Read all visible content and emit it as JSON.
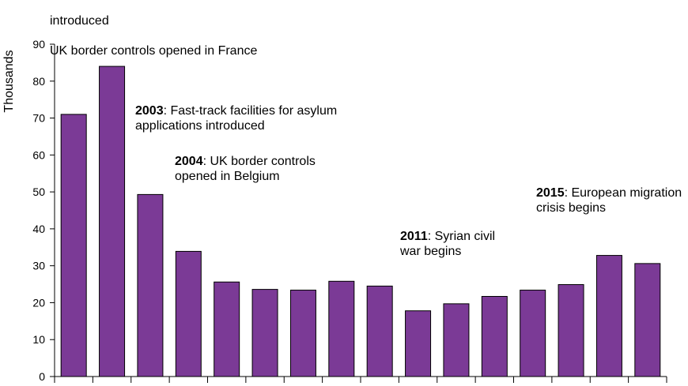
{
  "chart_data": {
    "type": "bar",
    "ylabel": "Thousands",
    "ylim": [
      0,
      90
    ],
    "yticks": [
      0,
      10,
      20,
      30,
      40,
      50,
      60,
      70,
      80,
      90
    ],
    "grid": false,
    "bar_color": "#7b3a96",
    "categories": [
      "",
      "",
      "",
      "",
      "",
      "",
      "",
      "",
      "",
      "",
      "",
      "",
      "",
      "",
      "",
      ""
    ],
    "values": [
      71,
      84,
      49.3,
      33.9,
      25.6,
      23.6,
      23.4,
      25.8,
      24.5,
      17.8,
      19.7,
      21.7,
      23.4,
      24.9,
      32.8,
      30.6
    ]
  },
  "annotations": {
    "top": {
      "lines": [
        "introduced",
        "UK border controls opened in France"
      ]
    },
    "a2003": {
      "year": "2003",
      "text": ": Fast-track facilities for asylum\napplications introduced"
    },
    "a2004": {
      "year": "2004",
      "text": ": UK border controls\nopened in Belgium"
    },
    "a2011": {
      "year": "2011",
      "text": ": Syrian civil\nwar begins"
    },
    "a2015": {
      "year": "2015",
      "text": ": European migration\ncrisis begins"
    }
  }
}
